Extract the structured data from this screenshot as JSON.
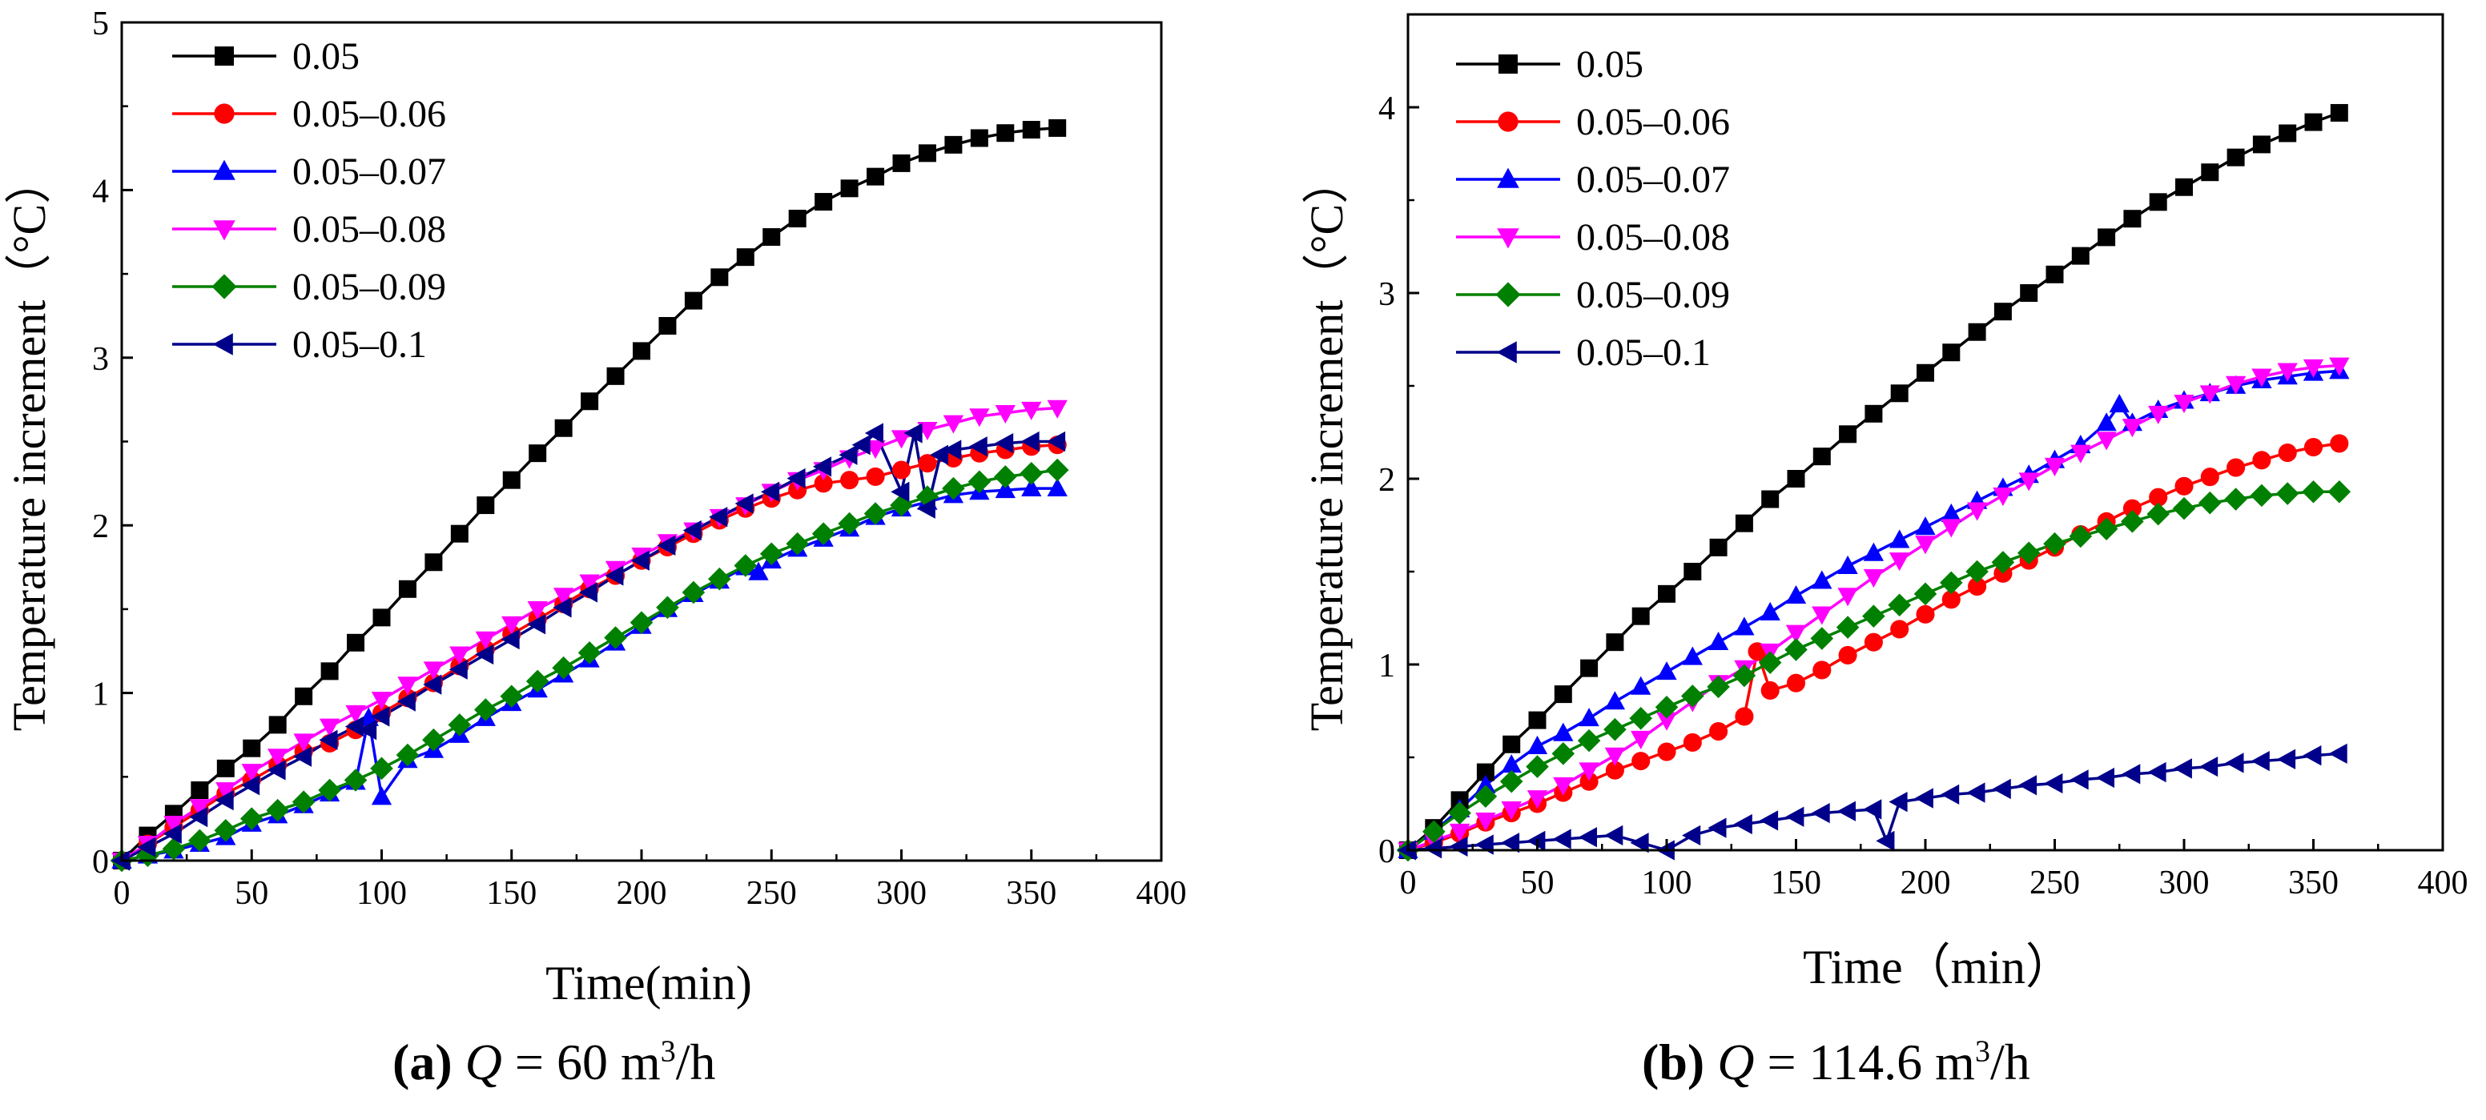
{
  "chart_data": [
    {
      "type": "line",
      "title": "",
      "xlabel": "Time(min)",
      "ylabel": "Temperature increment（°C）",
      "xlim": [
        0,
        400
      ],
      "ylim": [
        0,
        5
      ],
      "xticks": [
        0,
        50,
        100,
        150,
        200,
        250,
        300,
        350,
        400
      ],
      "yticks": [
        0,
        1,
        2,
        3,
        4,
        5
      ],
      "legend_position": "top-left",
      "caption": {
        "label": "(a)",
        "q": "Q",
        "text": " = 60 m",
        "sup": "3",
        "unit": "/h"
      },
      "series": [
        {
          "name": "0.05",
          "color": "#000000",
          "marker": "square",
          "x": [
            0,
            10,
            20,
            30,
            40,
            50,
            60,
            70,
            80,
            90,
            100,
            110,
            120,
            130,
            140,
            150,
            160,
            170,
            180,
            190,
            200,
            210,
            220,
            230,
            240,
            250,
            260,
            270,
            280,
            290,
            300,
            310,
            320,
            330,
            340,
            350,
            360
          ],
          "y": [
            0,
            0.15,
            0.28,
            0.42,
            0.55,
            0.67,
            0.81,
            0.98,
            1.13,
            1.3,
            1.45,
            1.62,
            1.78,
            1.95,
            2.12,
            2.27,
            2.43,
            2.58,
            2.74,
            2.89,
            3.04,
            3.19,
            3.34,
            3.48,
            3.6,
            3.72,
            3.83,
            3.93,
            4.01,
            4.08,
            4.16,
            4.22,
            4.27,
            4.31,
            4.34,
            4.36,
            4.37
          ]
        },
        {
          "name": "0.05–0.06",
          "color": "#ff0000",
          "marker": "circle",
          "x": [
            0,
            10,
            20,
            30,
            40,
            50,
            60,
            70,
            80,
            90,
            100,
            110,
            120,
            130,
            140,
            150,
            160,
            170,
            180,
            190,
            200,
            210,
            220,
            230,
            240,
            250,
            260,
            270,
            280,
            290,
            300,
            310,
            320,
            330,
            340,
            350,
            360
          ],
          "y": [
            0,
            0.1,
            0.2,
            0.3,
            0.4,
            0.48,
            0.57,
            0.65,
            0.7,
            0.78,
            0.88,
            0.97,
            1.06,
            1.16,
            1.26,
            1.35,
            1.44,
            1.53,
            1.62,
            1.7,
            1.79,
            1.87,
            1.95,
            2.03,
            2.1,
            2.16,
            2.21,
            2.25,
            2.27,
            2.29,
            2.33,
            2.37,
            2.4,
            2.43,
            2.45,
            2.47,
            2.48
          ]
        },
        {
          "name": "0.05–0.07",
          "color": "#0000ff",
          "marker": "triangle-up",
          "x": [
            0,
            10,
            20,
            30,
            40,
            50,
            60,
            70,
            80,
            90,
            95,
            100,
            110,
            120,
            130,
            140,
            150,
            160,
            170,
            180,
            190,
            200,
            210,
            220,
            230,
            240,
            245,
            250,
            260,
            270,
            280,
            290,
            300,
            310,
            320,
            330,
            340,
            350,
            360
          ],
          "y": [
            0,
            0.03,
            0.06,
            0.1,
            0.14,
            0.22,
            0.27,
            0.33,
            0.4,
            0.47,
            0.85,
            0.38,
            0.6,
            0.66,
            0.75,
            0.85,
            0.94,
            1.02,
            1.11,
            1.2,
            1.3,
            1.4,
            1.5,
            1.59,
            1.67,
            1.75,
            1.72,
            1.79,
            1.86,
            1.92,
            1.98,
            2.05,
            2.1,
            2.14,
            2.18,
            2.2,
            2.21,
            2.22,
            2.22
          ]
        },
        {
          "name": "0.05–0.08",
          "color": "#ff00ff",
          "marker": "triangle-down",
          "x": [
            0,
            10,
            20,
            30,
            40,
            50,
            60,
            70,
            80,
            90,
            100,
            110,
            120,
            130,
            140,
            150,
            160,
            170,
            180,
            190,
            200,
            210,
            220,
            230,
            240,
            250,
            260,
            270,
            280,
            290,
            300,
            310,
            320,
            330,
            340,
            350,
            360
          ],
          "y": [
            0,
            0.1,
            0.22,
            0.32,
            0.42,
            0.53,
            0.62,
            0.71,
            0.8,
            0.88,
            0.96,
            1.05,
            1.14,
            1.23,
            1.32,
            1.41,
            1.5,
            1.58,
            1.66,
            1.74,
            1.82,
            1.9,
            1.97,
            2.05,
            2.12,
            2.2,
            2.27,
            2.33,
            2.4,
            2.46,
            2.52,
            2.57,
            2.61,
            2.65,
            2.67,
            2.69,
            2.7
          ]
        },
        {
          "name": "0.05–0.09",
          "color": "#008000",
          "marker": "diamond",
          "x": [
            0,
            10,
            20,
            30,
            40,
            50,
            60,
            70,
            80,
            90,
            100,
            110,
            120,
            130,
            140,
            150,
            160,
            170,
            180,
            190,
            200,
            210,
            220,
            230,
            240,
            250,
            260,
            270,
            280,
            290,
            300,
            310,
            320,
            330,
            340,
            350,
            360
          ],
          "y": [
            0,
            0.03,
            0.07,
            0.12,
            0.18,
            0.25,
            0.3,
            0.35,
            0.42,
            0.48,
            0.55,
            0.63,
            0.72,
            0.81,
            0.9,
            0.98,
            1.07,
            1.15,
            1.24,
            1.33,
            1.42,
            1.51,
            1.6,
            1.68,
            1.76,
            1.83,
            1.89,
            1.95,
            2.01,
            2.07,
            2.12,
            2.17,
            2.22,
            2.26,
            2.29,
            2.31,
            2.33
          ]
        },
        {
          "name": "0.05–0.1",
          "color": "#00008b",
          "marker": "triangle-left",
          "x": [
            0,
            10,
            20,
            30,
            40,
            50,
            60,
            70,
            80,
            90,
            95,
            100,
            110,
            120,
            130,
            140,
            150,
            160,
            170,
            180,
            190,
            200,
            210,
            220,
            230,
            240,
            250,
            260,
            270,
            280,
            285,
            290,
            300,
            305,
            310,
            315,
            320,
            330,
            340,
            350,
            360
          ],
          "y": [
            0,
            0.08,
            0.16,
            0.26,
            0.36,
            0.45,
            0.54,
            0.62,
            0.72,
            0.8,
            0.78,
            0.86,
            0.95,
            1.05,
            1.14,
            1.23,
            1.32,
            1.41,
            1.51,
            1.6,
            1.7,
            1.79,
            1.88,
            1.97,
            2.05,
            2.13,
            2.2,
            2.28,
            2.35,
            2.42,
            2.48,
            2.55,
            2.2,
            2.55,
            2.1,
            2.42,
            2.45,
            2.47,
            2.49,
            2.5,
            2.5
          ]
        }
      ]
    },
    {
      "type": "line",
      "title": "",
      "xlabel": "Time（min）",
      "ylabel": "Temperature increment（°C）",
      "xlim": [
        0,
        400
      ],
      "ylim": [
        0,
        4.5
      ],
      "xticks": [
        0,
        50,
        100,
        150,
        200,
        250,
        300,
        350,
        400
      ],
      "yticks": [
        0,
        1,
        2,
        3,
        4
      ],
      "legend_position": "top-left",
      "caption": {
        "label": "(b)",
        "q": "Q",
        "text": " = 114.6 m",
        "sup": "3",
        "unit": "/h"
      },
      "series": [
        {
          "name": "0.05",
          "color": "#000000",
          "marker": "square",
          "x": [
            0,
            10,
            20,
            30,
            40,
            50,
            60,
            70,
            80,
            90,
            100,
            110,
            120,
            130,
            140,
            150,
            160,
            170,
            180,
            190,
            200,
            210,
            220,
            230,
            240,
            250,
            260,
            270,
            280,
            290,
            300,
            310,
            320,
            330,
            340,
            350,
            360
          ],
          "y": [
            0,
            0.12,
            0.27,
            0.42,
            0.57,
            0.7,
            0.84,
            0.98,
            1.12,
            1.26,
            1.38,
            1.5,
            1.63,
            1.76,
            1.89,
            2.0,
            2.12,
            2.24,
            2.35,
            2.46,
            2.57,
            2.68,
            2.79,
            2.9,
            3.0,
            3.1,
            3.2,
            3.3,
            3.4,
            3.49,
            3.57,
            3.65,
            3.73,
            3.8,
            3.86,
            3.92,
            3.97
          ]
        },
        {
          "name": "0.05–0.06",
          "color": "#ff0000",
          "marker": "circle",
          "x": [
            0,
            10,
            20,
            30,
            40,
            50,
            60,
            70,
            80,
            90,
            100,
            110,
            120,
            130,
            135,
            140,
            150,
            160,
            170,
            180,
            190,
            200,
            210,
            220,
            230,
            240,
            250,
            260,
            270,
            280,
            290,
            300,
            310,
            320,
            330,
            340,
            350,
            360
          ],
          "y": [
            0,
            0.04,
            0.09,
            0.15,
            0.2,
            0.25,
            0.31,
            0.37,
            0.43,
            0.48,
            0.53,
            0.58,
            0.64,
            0.72,
            1.07,
            0.86,
            0.9,
            0.97,
            1.05,
            1.12,
            1.19,
            1.27,
            1.35,
            1.42,
            1.49,
            1.56,
            1.63,
            1.7,
            1.77,
            1.84,
            1.9,
            1.96,
            2.01,
            2.06,
            2.1,
            2.14,
            2.17,
            2.19
          ]
        },
        {
          "name": "0.05–0.07",
          "color": "#0000ff",
          "marker": "triangle-up",
          "x": [
            0,
            10,
            20,
            30,
            40,
            50,
            60,
            70,
            80,
            90,
            100,
            110,
            120,
            130,
            140,
            150,
            160,
            170,
            180,
            190,
            200,
            210,
            220,
            230,
            240,
            250,
            260,
            270,
            275,
            280,
            290,
            300,
            310,
            320,
            330,
            340,
            350,
            360
          ],
          "y": [
            0,
            0.1,
            0.22,
            0.35,
            0.46,
            0.56,
            0.63,
            0.71,
            0.8,
            0.88,
            0.96,
            1.04,
            1.12,
            1.2,
            1.28,
            1.37,
            1.45,
            1.53,
            1.6,
            1.67,
            1.74,
            1.81,
            1.88,
            1.95,
            2.02,
            2.1,
            2.18,
            2.3,
            2.4,
            2.3,
            2.37,
            2.42,
            2.46,
            2.5,
            2.53,
            2.55,
            2.57,
            2.58
          ]
        },
        {
          "name": "0.05–0.08",
          "color": "#ff00ff",
          "marker": "triangle-down",
          "x": [
            0,
            10,
            20,
            30,
            40,
            50,
            60,
            70,
            80,
            90,
            100,
            110,
            120,
            130,
            140,
            150,
            160,
            170,
            180,
            190,
            200,
            210,
            220,
            230,
            240,
            250,
            260,
            270,
            280,
            290,
            300,
            310,
            320,
            330,
            340,
            350,
            360
          ],
          "y": [
            0,
            0.05,
            0.1,
            0.16,
            0.22,
            0.28,
            0.35,
            0.43,
            0.51,
            0.6,
            0.7,
            0.8,
            0.9,
            0.98,
            1.07,
            1.17,
            1.27,
            1.37,
            1.47,
            1.56,
            1.65,
            1.74,
            1.83,
            1.91,
            1.99,
            2.07,
            2.14,
            2.21,
            2.28,
            2.35,
            2.41,
            2.46,
            2.51,
            2.55,
            2.58,
            2.6,
            2.61
          ]
        },
        {
          "name": "0.05–0.09",
          "color": "#008000",
          "marker": "diamond",
          "x": [
            0,
            10,
            20,
            30,
            40,
            50,
            60,
            70,
            80,
            90,
            100,
            110,
            120,
            130,
            140,
            150,
            160,
            170,
            180,
            190,
            200,
            210,
            220,
            230,
            240,
            250,
            260,
            270,
            280,
            290,
            300,
            310,
            320,
            330,
            340,
            350,
            360
          ],
          "y": [
            0,
            0.1,
            0.2,
            0.29,
            0.37,
            0.45,
            0.52,
            0.59,
            0.65,
            0.71,
            0.77,
            0.83,
            0.88,
            0.94,
            1.01,
            1.08,
            1.14,
            1.2,
            1.26,
            1.32,
            1.38,
            1.44,
            1.5,
            1.55,
            1.6,
            1.65,
            1.69,
            1.73,
            1.77,
            1.81,
            1.84,
            1.87,
            1.89,
            1.91,
            1.92,
            1.93,
            1.93
          ]
        },
        {
          "name": "0.05–0.1",
          "color": "#00008b",
          "marker": "triangle-left",
          "x": [
            0,
            10,
            20,
            30,
            40,
            50,
            60,
            70,
            80,
            90,
            100,
            110,
            120,
            130,
            140,
            150,
            160,
            170,
            180,
            185,
            190,
            200,
            210,
            220,
            230,
            240,
            250,
            260,
            270,
            280,
            290,
            300,
            310,
            320,
            330,
            340,
            350,
            360
          ],
          "y": [
            0,
            0.01,
            0.02,
            0.03,
            0.04,
            0.05,
            0.06,
            0.07,
            0.08,
            0.04,
            0.0,
            0.08,
            0.12,
            0.14,
            0.16,
            0.18,
            0.2,
            0.21,
            0.22,
            0.05,
            0.26,
            0.28,
            0.3,
            0.31,
            0.33,
            0.35,
            0.36,
            0.38,
            0.39,
            0.41,
            0.42,
            0.44,
            0.45,
            0.47,
            0.48,
            0.49,
            0.51,
            0.52
          ]
        }
      ]
    }
  ]
}
